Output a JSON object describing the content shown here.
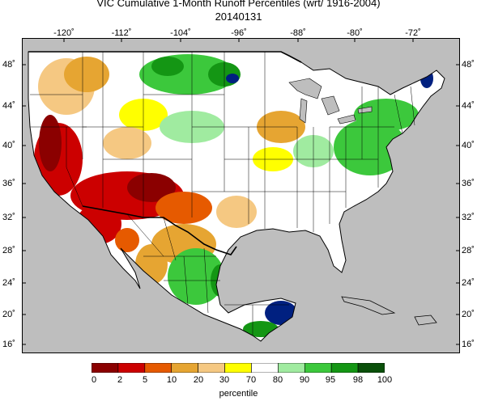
{
  "title_line1": "VIC Cumulative 1-Month Runoff Percentiles (wrt/ 1916-2004)",
  "title_line2": "20140131",
  "longitude_labels": [
    "-120˚",
    "-112˚",
    "-104˚",
    "-96˚",
    "-88˚",
    "-80˚",
    "-72˚"
  ],
  "latitude_labels": [
    "48˚",
    "44˚",
    "40˚",
    "36˚",
    "32˚",
    "28˚",
    "24˚",
    "20˚",
    "16˚"
  ],
  "colorbar": {
    "title": "percentile",
    "tick_labels": [
      "0",
      "2",
      "5",
      "10",
      "20",
      "30",
      "70",
      "80",
      "90",
      "95",
      "98",
      "100"
    ],
    "colors": [
      "#8b0000",
      "#cc0000",
      "#e65a00",
      "#e6a532",
      "#f5c882",
      "#ffff00",
      "#ffffff",
      "#a0eba0",
      "#3cc83c",
      "#149614",
      "#0a500a",
      "#002080"
    ]
  },
  "map": {
    "ocean_color": "#bebebe",
    "land_color": "#ffffff",
    "border_color": "#000000",
    "great_lakes_color": "#bebebe"
  }
}
